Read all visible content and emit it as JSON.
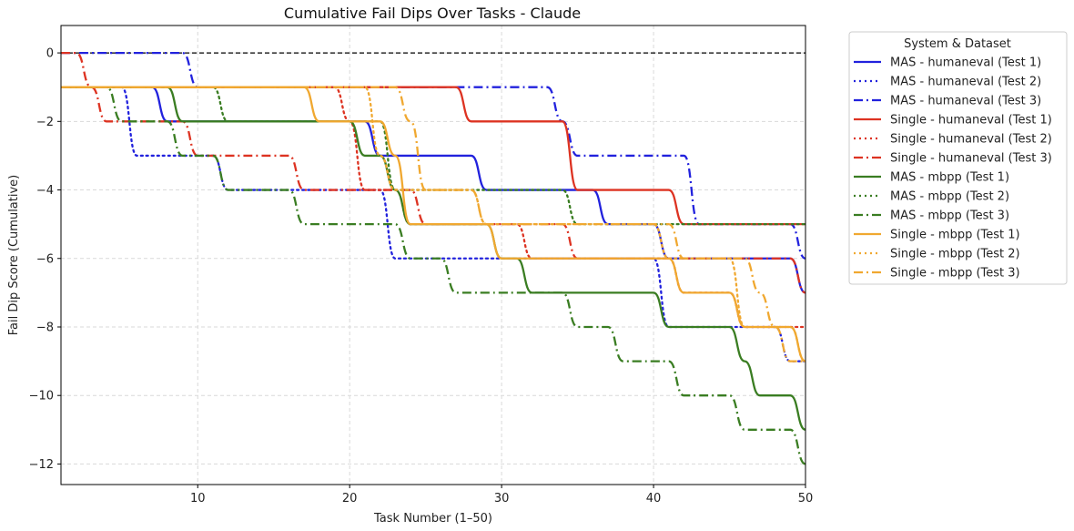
{
  "chart_data": {
    "type": "line",
    "title": "Cumulative Fail Dips Over Tasks - Claude",
    "xlabel": "Task Number (1–50)",
    "ylabel": "Fail Dip Score (Cumulative)",
    "xlim": [
      1,
      50
    ],
    "ylim": [
      -12.6,
      0.8
    ],
    "xticks": [
      10,
      20,
      30,
      40,
      50
    ],
    "yticks": [
      0,
      -2,
      -4,
      -6,
      -8,
      -10,
      -12
    ],
    "grid": true,
    "reference_line": {
      "y": 0,
      "style": "dashed",
      "color": "#000000"
    },
    "legend": {
      "title": "System & Dataset",
      "position": "outside-right"
    },
    "x": [
      1,
      2,
      3,
      4,
      5,
      6,
      7,
      8,
      9,
      10,
      11,
      12,
      13,
      14,
      15,
      16,
      17,
      18,
      19,
      20,
      21,
      22,
      23,
      24,
      25,
      26,
      27,
      28,
      29,
      30,
      31,
      32,
      33,
      34,
      35,
      36,
      37,
      38,
      39,
      40,
      41,
      42,
      43,
      44,
      45,
      46,
      47,
      48,
      49,
      50
    ],
    "series": [
      {
        "name": "MAS - humaneval (Test 1)",
        "color": "#2222dd",
        "style": "solid",
        "values": [
          -1,
          -1,
          -1,
          -1,
          -1,
          -1,
          -1,
          -2,
          -2,
          -2,
          -2,
          -2,
          -2,
          -2,
          -2,
          -2,
          -2,
          -2,
          -2,
          -2,
          -2,
          -3,
          -3,
          -3,
          -3,
          -3,
          -3,
          -3,
          -4,
          -4,
          -4,
          -4,
          -4,
          -4,
          -4,
          -4,
          -5,
          -5,
          -5,
          -5,
          -6,
          -6,
          -6,
          -6,
          -6,
          -6,
          -6,
          -6,
          -6,
          -7
        ]
      },
      {
        "name": "MAS - humaneval (Test 2)",
        "color": "#2222dd",
        "style": "dotted",
        "values": [
          -1,
          -1,
          -1,
          -1,
          -1,
          -3,
          -3,
          -3,
          -3,
          -3,
          -3,
          -4,
          -4,
          -4,
          -4,
          -4,
          -4,
          -4,
          -4,
          -4,
          -4,
          -4,
          -6,
          -6,
          -6,
          -6,
          -6,
          -6,
          -6,
          -6,
          -6,
          -6,
          -6,
          -6,
          -6,
          -6,
          -6,
          -6,
          -6,
          -6,
          -8,
          -8,
          -8,
          -8,
          -8,
          -8,
          -8,
          -8,
          -9,
          -9
        ]
      },
      {
        "name": "MAS - humaneval (Test 3)",
        "color": "#2222dd",
        "style": "dashdot",
        "values": [
          0,
          0,
          0,
          0,
          0,
          0,
          0,
          0,
          0,
          -1,
          -1,
          -1,
          -1,
          -1,
          -1,
          -1,
          -1,
          -1,
          -1,
          -1,
          -1,
          -1,
          -1,
          -1,
          -1,
          -1,
          -1,
          -1,
          -1,
          -1,
          -1,
          -1,
          -1,
          -2,
          -3,
          -3,
          -3,
          -3,
          -3,
          -3,
          -3,
          -3,
          -5,
          -5,
          -5,
          -5,
          -5,
          -5,
          -5,
          -6
        ]
      },
      {
        "name": "Single - humaneval (Test 1)",
        "color": "#dd3322",
        "style": "solid",
        "values": [
          -1,
          -1,
          -1,
          -1,
          -1,
          -1,
          -1,
          -1,
          -1,
          -1,
          -1,
          -1,
          -1,
          -1,
          -1,
          -1,
          -1,
          -1,
          -1,
          -1,
          -1,
          -1,
          -1,
          -1,
          -1,
          -1,
          -1,
          -2,
          -2,
          -2,
          -2,
          -2,
          -2,
          -2,
          -4,
          -4,
          -4,
          -4,
          -4,
          -4,
          -4,
          -5,
          -5,
          -5,
          -5,
          -5,
          -5,
          -5,
          -5,
          -5
        ]
      },
      {
        "name": "Single - humaneval (Test 2)",
        "color": "#dd3322",
        "style": "dotted",
        "values": [
          -1,
          -1,
          -1,
          -1,
          -1,
          -1,
          -1,
          -1,
          -1,
          -1,
          -1,
          -1,
          -1,
          -1,
          -1,
          -1,
          -1,
          -1,
          -1,
          -2,
          -4,
          -4,
          -4,
          -5,
          -5,
          -5,
          -5,
          -5,
          -5,
          -5,
          -5,
          -6,
          -6,
          -6,
          -6,
          -6,
          -6,
          -6,
          -6,
          -6,
          -6,
          -7,
          -7,
          -7,
          -7,
          -8,
          -8,
          -8,
          -8,
          -8
        ]
      },
      {
        "name": "Single - humaneval (Test 3)",
        "color": "#dd3322",
        "style": "dashdot",
        "values": [
          0,
          0,
          -1,
          -2,
          -2,
          -2,
          -2,
          -2,
          -2,
          -3,
          -3,
          -3,
          -3,
          -3,
          -3,
          -3,
          -4,
          -4,
          -4,
          -4,
          -4,
          -4,
          -4,
          -4,
          -5,
          -5,
          -5,
          -5,
          -5,
          -5,
          -5,
          -5,
          -5,
          -5,
          -6,
          -6,
          -6,
          -6,
          -6,
          -6,
          -6,
          -6,
          -6,
          -6,
          -6,
          -6,
          -6,
          -6,
          -6,
          -7
        ]
      },
      {
        "name": "MAS - mbpp (Test 1)",
        "color": "#3a7d22",
        "style": "solid",
        "values": [
          -1,
          -1,
          -1,
          -1,
          -1,
          -1,
          -1,
          -1,
          -2,
          -2,
          -2,
          -2,
          -2,
          -2,
          -2,
          -2,
          -2,
          -2,
          -2,
          -2,
          -3,
          -3,
          -4,
          -5,
          -5,
          -5,
          -5,
          -5,
          -5,
          -6,
          -6,
          -7,
          -7,
          -7,
          -7,
          -7,
          -7,
          -7,
          -7,
          -7,
          -8,
          -8,
          -8,
          -8,
          -8,
          -9,
          -10,
          -10,
          -10,
          -11
        ]
      },
      {
        "name": "MAS - mbpp (Test 2)",
        "color": "#3a7d22",
        "style": "dotted",
        "values": [
          -1,
          -1,
          -1,
          -1,
          -1,
          -1,
          -1,
          -1,
          -1,
          -1,
          -1,
          -2,
          -2,
          -2,
          -2,
          -2,
          -2,
          -2,
          -2,
          -2,
          -2,
          -2,
          -4,
          -4,
          -4,
          -4,
          -4,
          -4,
          -4,
          -4,
          -4,
          -4,
          -4,
          -4,
          -5,
          -5,
          -5,
          -5,
          -5,
          -5,
          -5,
          -5,
          -5,
          -5,
          -5,
          -5,
          -5,
          -5,
          -5,
          -5
        ]
      },
      {
        "name": "MAS - mbpp (Test 3)",
        "color": "#3a7d22",
        "style": "dashdot",
        "values": [
          -1,
          -1,
          -1,
          -1,
          -2,
          -2,
          -2,
          -2,
          -3,
          -3,
          -3,
          -4,
          -4,
          -4,
          -4,
          -4,
          -5,
          -5,
          -5,
          -5,
          -5,
          -5,
          -5,
          -6,
          -6,
          -6,
          -7,
          -7,
          -7,
          -7,
          -7,
          -7,
          -7,
          -7,
          -8,
          -8,
          -8,
          -9,
          -9,
          -9,
          -9,
          -10,
          -10,
          -10,
          -10,
          -11,
          -11,
          -11,
          -11,
          -12
        ]
      },
      {
        "name": "Single - mbpp (Test 1)",
        "color": "#f0a830",
        "style": "solid",
        "values": [
          -1,
          -1,
          -1,
          -1,
          -1,
          -1,
          -1,
          -1,
          -1,
          -1,
          -1,
          -1,
          -1,
          -1,
          -1,
          -1,
          -1,
          -2,
          -2,
          -2,
          -2,
          -2,
          -3,
          -5,
          -5,
          -5,
          -5,
          -5,
          -5,
          -6,
          -6,
          -6,
          -6,
          -6,
          -6,
          -6,
          -6,
          -6,
          -6,
          -6,
          -6,
          -7,
          -7,
          -7,
          -7,
          -8,
          -8,
          -8,
          -8,
          -9
        ]
      },
      {
        "name": "Single - mbpp (Test 2)",
        "color": "#f0a830",
        "style": "dotted",
        "values": [
          -1,
          -1,
          -1,
          -1,
          -1,
          -1,
          -1,
          -1,
          -1,
          -1,
          -1,
          -1,
          -1,
          -1,
          -1,
          -1,
          -1,
          -1,
          -1,
          -1,
          -1,
          -3,
          -4,
          -4,
          -4,
          -4,
          -4,
          -4,
          -5,
          -5,
          -5,
          -5,
          -5,
          -5,
          -5,
          -5,
          -5,
          -5,
          -5,
          -5,
          -6,
          -6,
          -6,
          -6,
          -6,
          -8,
          -8,
          -8,
          -8,
          -9
        ]
      },
      {
        "name": "Single - mbpp (Test 3)",
        "color": "#f0a830",
        "style": "dashdot",
        "values": [
          -1,
          -1,
          -1,
          -1,
          -1,
          -1,
          -1,
          -1,
          -1,
          -1,
          -1,
          -1,
          -1,
          -1,
          -1,
          -1,
          -1,
          -1,
          -1,
          -1,
          -1,
          -1,
          -1,
          -2,
          -4,
          -4,
          -4,
          -4,
          -5,
          -5,
          -5,
          -5,
          -5,
          -5,
          -5,
          -5,
          -5,
          -5,
          -5,
          -5,
          -5,
          -6,
          -6,
          -6,
          -6,
          -6,
          -7,
          -8,
          -9,
          -9
        ]
      }
    ]
  }
}
